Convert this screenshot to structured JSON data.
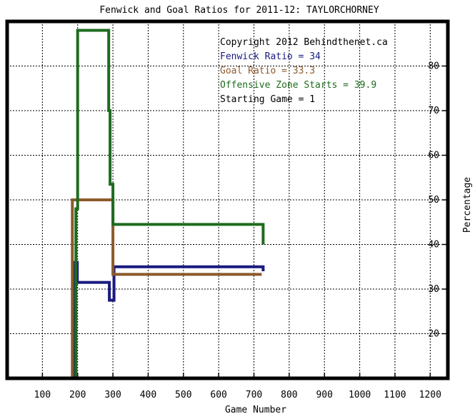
{
  "title": "Fenwick and Goal Ratios for 2011-12: TAYLORCHORNEY",
  "legend": [
    {
      "text": "Copyright 2012 Behindthenet.ca",
      "color": "#000000"
    },
    {
      "text": "Fenwick Ratio = 34",
      "color": "#1a1a80"
    },
    {
      "text": "Goal Ratio = 33.3",
      "color": "#8b5a2b"
    },
    {
      "text": "Offensive Zone Starts = 39.9",
      "color": "#1e6b1e"
    },
    {
      "text": "Starting Game = 1",
      "color": "#000000"
    }
  ],
  "chart_data": {
    "type": "line",
    "title": "Fenwick and Goal Ratios for 2011-12: TAYLORCHORNEY",
    "xlabel": "Game Number",
    "ylabel": "Percentage",
    "xlim": [
      0,
      1250
    ],
    "ylim": [
      10,
      90
    ],
    "x_ticks": [
      100,
      200,
      300,
      400,
      500,
      600,
      700,
      800,
      900,
      1000,
      1100,
      1200
    ],
    "y_ticks": [
      20,
      30,
      40,
      50,
      60,
      70,
      80
    ],
    "grid": true,
    "y_axis_side": "right",
    "legend_placement": "top-right",
    "series": [
      {
        "name": "Fenwick Ratio",
        "color": "#1a1a80",
        "points": [
          [
            192,
            10
          ],
          [
            192,
            36
          ],
          [
            199,
            36
          ],
          [
            199,
            31.5
          ],
          [
            290,
            31.5
          ],
          [
            290,
            27.5
          ],
          [
            303,
            27.5
          ],
          [
            303,
            35
          ],
          [
            726,
            35
          ],
          [
            726,
            34
          ]
        ]
      },
      {
        "name": "Goal Ratio",
        "color": "#8b5a2b",
        "points": [
          [
            185,
            10
          ],
          [
            185,
            50
          ],
          [
            300,
            50
          ],
          [
            300,
            33.3
          ],
          [
            722,
            33.3
          ]
        ]
      },
      {
        "name": "Offensive Zone Starts",
        "color": "#1e6b1e",
        "points": [
          [
            195,
            10
          ],
          [
            195,
            48
          ],
          [
            200,
            48
          ],
          [
            200,
            88
          ],
          [
            288,
            88
          ],
          [
            288,
            70
          ],
          [
            292,
            70
          ],
          [
            292,
            53.5
          ],
          [
            300,
            53.5
          ],
          [
            300,
            44.5
          ],
          [
            726,
            44.5
          ],
          [
            726,
            40
          ]
        ]
      }
    ]
  }
}
